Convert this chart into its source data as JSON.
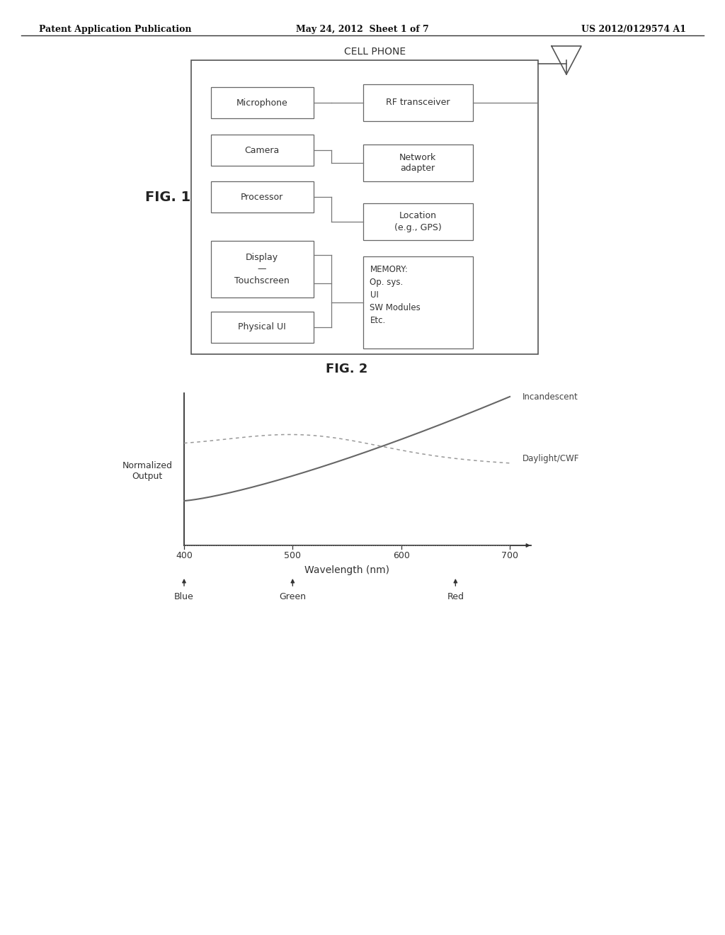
{
  "background_color": "#ffffff",
  "header_left": "Patent Application Publication",
  "header_center": "May 24, 2012  Sheet 1 of 7",
  "header_right": "US 2012/0129574 A1",
  "fig1_label": "FIG. 1",
  "fig2_label": "FIG. 2",
  "cell_phone_label": "CELL PHONE",
  "right_box_memory": "MEMORY:\nOp. sys.\nUI\nSW Modules\nEtc.",
  "wavelength_label": "Wavelength (nm)",
  "y_label": "Normalized\nOutput",
  "x_ticks": [
    400,
    500,
    600,
    700
  ],
  "color_labels": [
    {
      "x": 400,
      "label": "Blue"
    },
    {
      "x": 500,
      "label": "Green"
    },
    {
      "x": 650,
      "label": "Red"
    }
  ],
  "line_incandescent_label": "Incandescent",
  "line_daylight_label": "Daylight/CWF"
}
